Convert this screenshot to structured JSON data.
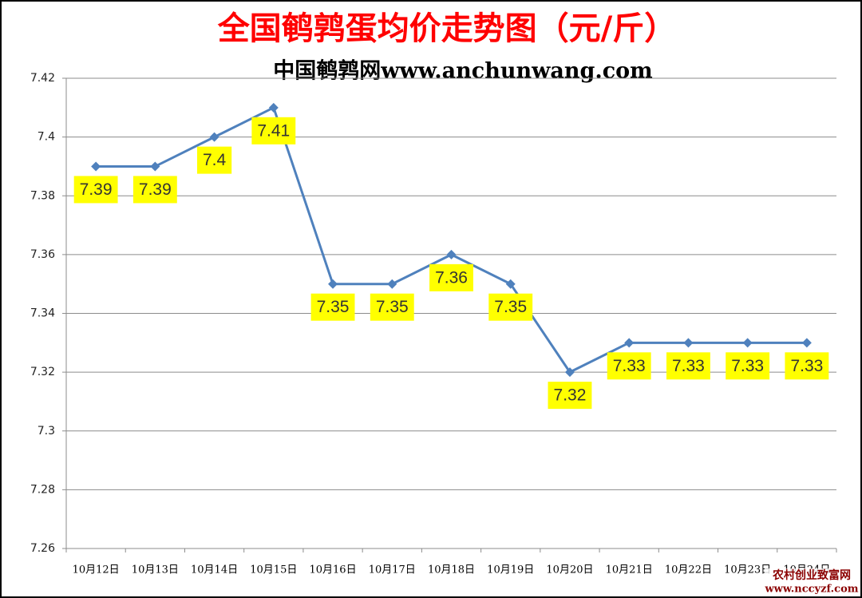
{
  "chart_data": {
    "type": "line",
    "title": "全国鹌鹑蛋均价走势图（元/斤）",
    "subtitle": "中国鹌鹑网www.anchunwang.com",
    "categories": [
      "10月12日",
      "10月13日",
      "10月14日",
      "10月15日",
      "10月16日",
      "10月17日",
      "10月18日",
      "10月19日",
      "10月20日",
      "10月21日",
      "10月22日",
      "10月23日",
      "10月24日"
    ],
    "values": [
      7.39,
      7.39,
      7.4,
      7.41,
      7.35,
      7.35,
      7.36,
      7.35,
      7.32,
      7.33,
      7.33,
      7.33,
      7.33
    ],
    "color": "#4f81bd",
    "ylim": [
      7.26,
      7.42
    ],
    "yticks": [
      7.26,
      7.28,
      7.3,
      7.32,
      7.34,
      7.36,
      7.38,
      7.4,
      7.42
    ],
    "grid": true,
    "data_labels": true,
    "watermark": {
      "name": "农村创业致富网",
      "url": "www.nccyzf.com"
    }
  }
}
